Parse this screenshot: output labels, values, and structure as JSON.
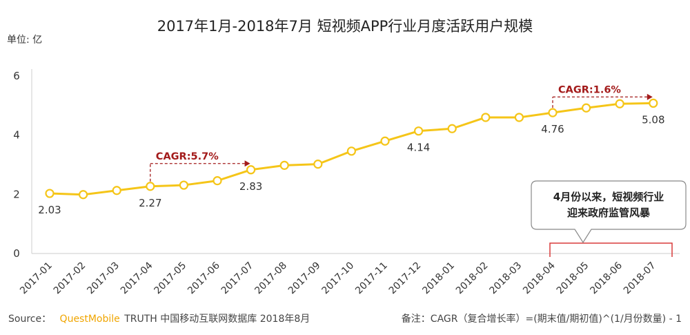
{
  "chart_data": {
    "type": "line",
    "title": "2017年1月-2018年7月 短视频APP行业月度活跃用户规模",
    "unit_label": "单位: 亿",
    "ylim": [
      0,
      6
    ],
    "y_ticks": [
      0,
      2,
      4,
      6
    ],
    "grid": false,
    "categories": [
      "2017-01",
      "2017-02",
      "2017-03",
      "2017-04",
      "2017-05",
      "2017-06",
      "2017-07",
      "2017-08",
      "2017-09",
      "2017-10",
      "2017-11",
      "2017-12",
      "2018-01",
      "2018-02",
      "2018-03",
      "2018-04",
      "2018-05",
      "2018-06",
      "2018-07"
    ],
    "series": [
      {
        "values": [
          2.03,
          1.99,
          2.13,
          2.27,
          2.31,
          2.46,
          2.83,
          2.98,
          3.02,
          3.46,
          3.8,
          4.14,
          4.22,
          4.6,
          4.6,
          4.76,
          4.92,
          5.06,
          5.08
        ],
        "color": "#F5C518"
      }
    ],
    "data_labels": [
      {
        "index": 0,
        "text": "2.03"
      },
      {
        "index": 3,
        "text": "2.27"
      },
      {
        "index": 6,
        "text": "2.83"
      },
      {
        "index": 11,
        "text": "4.14"
      },
      {
        "index": 15,
        "text": "4.76"
      },
      {
        "index": 18,
        "text": "5.08"
      }
    ],
    "annotations": [
      {
        "text": "CAGR:5.7%",
        "from_index": 3,
        "to_index": 6,
        "color": "#A31B1B"
      },
      {
        "text": "CAGR:1.6%",
        "from_index": 15,
        "to_index": 18,
        "color": "#A31B1B"
      }
    ],
    "callout": {
      "lines": [
        "4月份以来，短视频行业",
        "迎来政府监管风暴"
      ],
      "border_color": "#888888",
      "highlight_color": "#D93A3A"
    }
  },
  "footer": {
    "source_prefix": "Source：",
    "brand": "QuestMobile",
    "source_rest": "TRUTH 中国移动互联网数据库 2018年8月",
    "note": "备注：CAGR（复合增长率）=(期末值/期初值)^(1/月份数量) - 1",
    "brand_color": "#F0A500"
  }
}
